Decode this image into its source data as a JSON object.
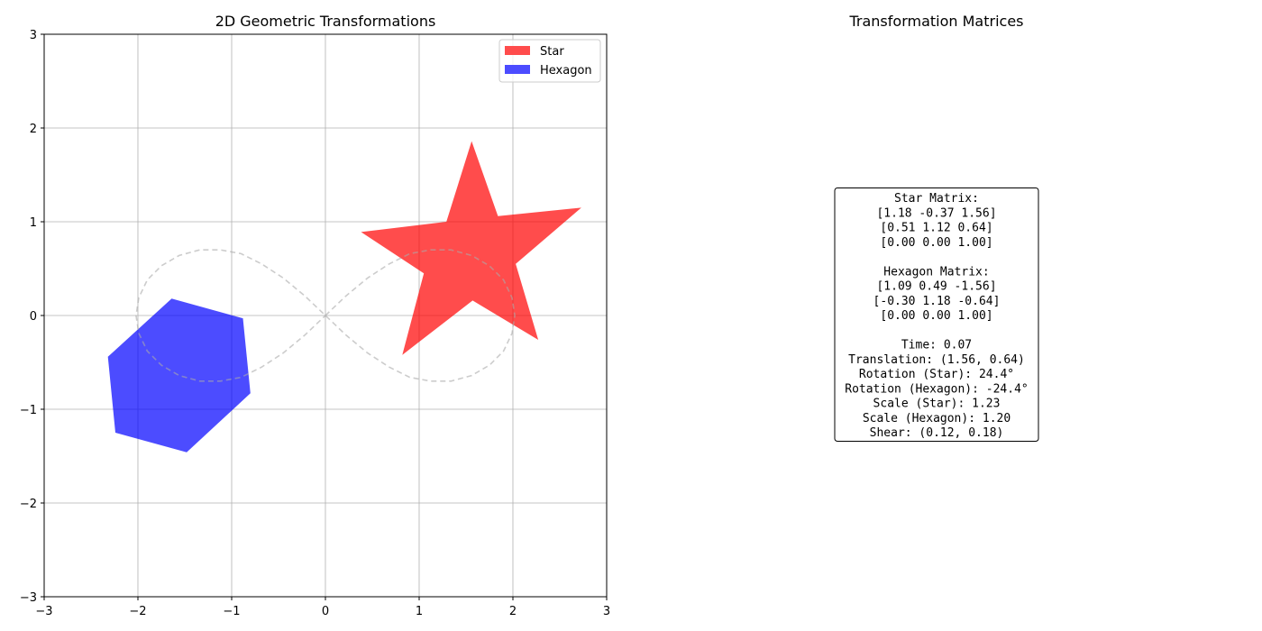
{
  "chart_data": {
    "type": "area",
    "title": "2D Geometric Transformations",
    "xlabel": "",
    "ylabel": "",
    "xlim": [
      -3,
      3
    ],
    "ylim": [
      -3,
      3
    ],
    "xticks": [
      -3,
      -2,
      -1,
      0,
      1,
      2,
      3
    ],
    "yticks": [
      -3,
      -2,
      -1,
      0,
      1,
      2,
      3
    ],
    "xtick_labels": [
      "−3",
      "−2",
      "−1",
      "0",
      "1",
      "2",
      "3"
    ],
    "ytick_labels": [
      "−3",
      "−2",
      "−1",
      "0",
      "1",
      "2",
      "3"
    ],
    "grid": true,
    "legend": {
      "placement": "top-right",
      "entries": [
        {
          "label": "Star",
          "color": "#ff4c4c"
        },
        {
          "label": "Hexagon",
          "color": "#4c4cff"
        }
      ]
    },
    "series": [
      {
        "name": "Star",
        "kind": "polygon",
        "color": "#ff0000",
        "alpha": 0.7,
        "points": [
          [
            1.56,
            1.86
          ],
          [
            1.84,
            1.06
          ],
          [
            2.73,
            1.15
          ],
          [
            2.03,
            0.55
          ],
          [
            2.27,
            -0.26
          ],
          [
            1.57,
            0.16
          ],
          [
            0.82,
            -0.42
          ],
          [
            1.05,
            0.45
          ],
          [
            0.38,
            0.89
          ],
          [
            1.29,
            1.0
          ]
        ]
      },
      {
        "name": "Hexagon",
        "kind": "polygon",
        "color": "#0000ff",
        "alpha": 0.7,
        "points": [
          [
            -1.64,
            0.18
          ],
          [
            -0.88,
            -0.03
          ],
          [
            -0.8,
            -0.83
          ],
          [
            -1.48,
            -1.46
          ],
          [
            -2.24,
            -1.25
          ],
          [
            -2.32,
            -0.44
          ]
        ]
      },
      {
        "kind": "curve",
        "style": "dashed",
        "color": "#aaaaaa",
        "points": [
          [
            0,
            0
          ],
          [
            0.22,
            0.21
          ],
          [
            0.45,
            0.4
          ],
          [
            0.68,
            0.55
          ],
          [
            0.9,
            0.66
          ],
          [
            1.12,
            0.7
          ],
          [
            1.34,
            0.7
          ],
          [
            1.56,
            0.64
          ],
          [
            1.75,
            0.53
          ],
          [
            1.9,
            0.38
          ],
          [
            1.99,
            0.19
          ],
          [
            2.02,
            0
          ],
          [
            1.99,
            -0.19
          ],
          [
            1.9,
            -0.38
          ],
          [
            1.75,
            -0.53
          ],
          [
            1.56,
            -0.64
          ],
          [
            1.34,
            -0.7
          ],
          [
            1.12,
            -0.7
          ],
          [
            0.9,
            -0.66
          ],
          [
            0.68,
            -0.55
          ],
          [
            0.45,
            -0.4
          ],
          [
            0.22,
            -0.21
          ],
          [
            0,
            0
          ],
          [
            -0.22,
            0.21
          ],
          [
            -0.45,
            0.4
          ],
          [
            -0.68,
            0.55
          ],
          [
            -0.9,
            0.66
          ],
          [
            -1.12,
            0.7
          ],
          [
            -1.34,
            0.7
          ],
          [
            -1.56,
            0.64
          ],
          [
            -1.75,
            0.53
          ],
          [
            -1.9,
            0.38
          ],
          [
            -1.99,
            0.19
          ],
          [
            -2.02,
            0
          ],
          [
            -1.99,
            -0.19
          ],
          [
            -1.9,
            -0.38
          ],
          [
            -1.75,
            -0.53
          ],
          [
            -1.56,
            -0.64
          ],
          [
            -1.34,
            -0.7
          ],
          [
            -1.12,
            -0.7
          ],
          [
            -0.9,
            -0.66
          ],
          [
            -0.68,
            -0.55
          ],
          [
            -0.45,
            -0.4
          ],
          [
            -0.22,
            -0.21
          ],
          [
            0,
            0
          ]
        ]
      }
    ]
  },
  "panel": {
    "title": "Transformation Matrices",
    "lines": [
      "Star Matrix:",
      "[1.18  -0.37  1.56]",
      "[0.51  1.12  0.64]",
      "[0.00  0.00  1.00]",
      "",
      "Hexagon Matrix:",
      "[1.09  0.49  -1.56]",
      "[-0.30  1.18  -0.64]",
      "[0.00  0.00  1.00]",
      "",
      "Time: 0.07",
      "Translation: (1.56, 0.64)",
      "Rotation (Star): 24.4°",
      "Rotation (Hexagon): -24.4°",
      "Scale (Star): 1.23",
      "Scale (Hexagon): 1.20",
      "Shear: (0.12, 0.18)"
    ]
  }
}
